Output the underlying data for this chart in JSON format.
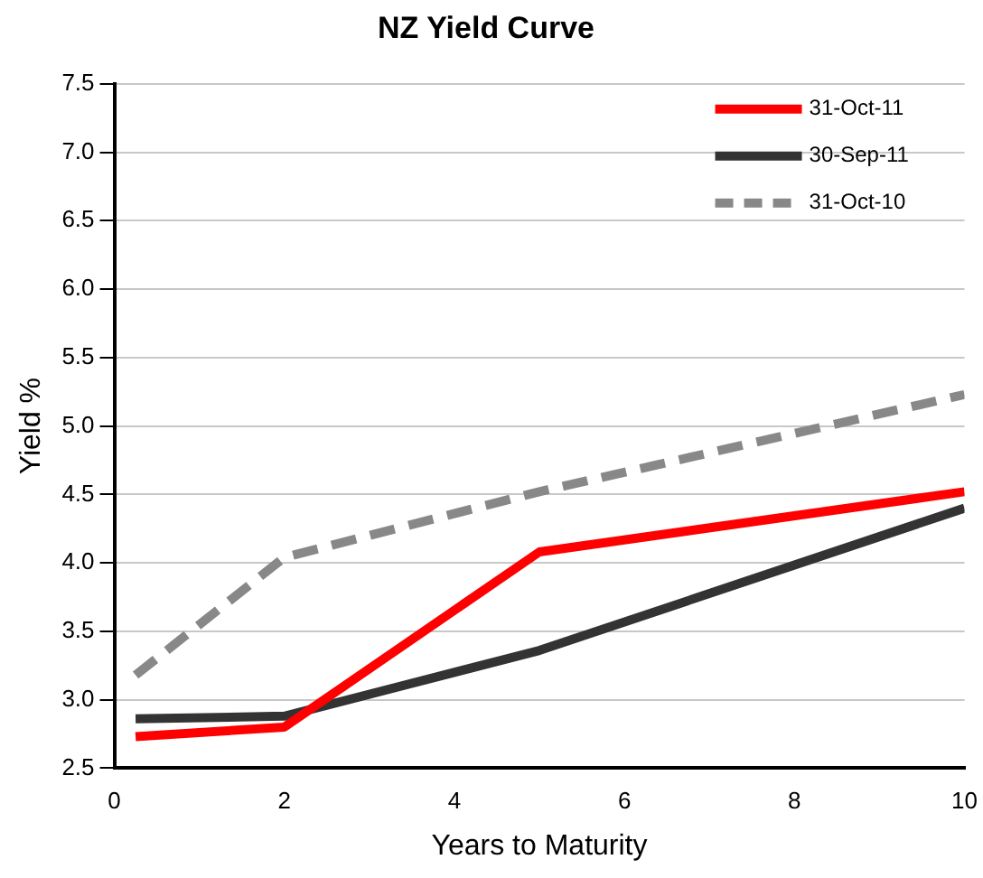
{
  "chart_data": {
    "type": "line",
    "title": "NZ Yield Curve",
    "xlabel": "Years to Maturity",
    "ylabel": "Yield %",
    "x": [
      0.25,
      2,
      5,
      10
    ],
    "series": [
      {
        "name": "31-Oct-11",
        "color": "#ff0000",
        "values": [
          2.73,
          2.8,
          4.08,
          4.52
        ],
        "line_style": "solid"
      },
      {
        "name": "30-Sep-11",
        "color": "#333333",
        "values": [
          2.86,
          2.88,
          3.36,
          4.4
        ],
        "line_style": "solid"
      },
      {
        "name": "31-Oct-10",
        "color": "#888888",
        "values": [
          3.18,
          4.04,
          4.52,
          5.23
        ],
        "line_style": "dashed"
      }
    ],
    "xlim": [
      0,
      10
    ],
    "xticks": [
      0,
      2,
      4,
      6,
      8,
      10
    ],
    "ylim": [
      2.5,
      7.5
    ],
    "yticks": [
      2.5,
      {
        "value": 3,
        "label": "3.0"
      },
      3.5,
      {
        "value": 4,
        "label": "4.0"
      },
      4.5,
      {
        "value": 5,
        "label": "5.0"
      },
      5.5,
      {
        "value": 6,
        "label": "6.0"
      },
      6.5,
      {
        "value": 7,
        "label": "7.0"
      },
      7.5
    ],
    "grid": "y",
    "legend": "top right",
    "marker": "none"
  }
}
